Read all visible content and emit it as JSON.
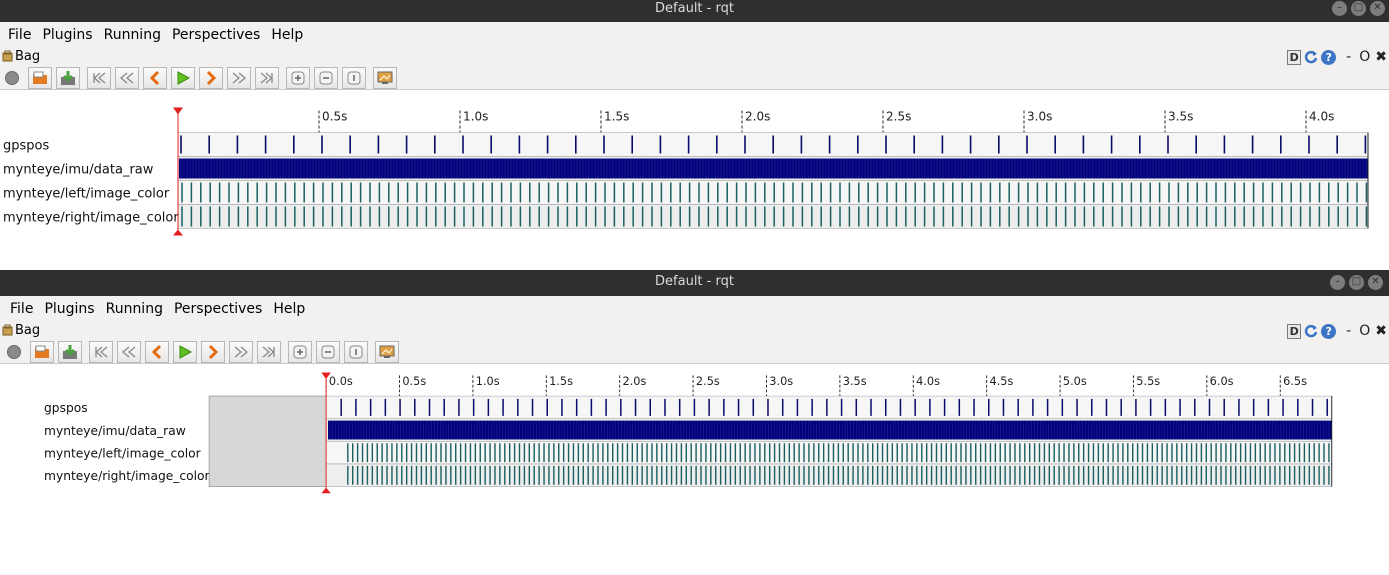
{
  "windows": [
    {
      "title": "Default - rqt",
      "menu": [
        "File",
        "Plugins",
        "Running",
        "Perspectives",
        "Help"
      ],
      "plugin_label": "Bag",
      "d_label": "D",
      "help_label": "?",
      "dash_label": "-",
      "circle_label": "O",
      "close_label": "✖",
      "ticks": [
        "0.5s",
        "1.0s",
        "1.5s",
        "2.0s",
        "2.5s",
        "3.0s",
        "3.5s",
        "4.0s"
      ],
      "topics": [
        "gpspos",
        "mynteye/imu/data_raw",
        "mynteye/left/image_color",
        "mynteye/right/image_color"
      ]
    },
    {
      "title": "Default - rqt",
      "menu": [
        "File",
        "Plugins",
        "Running",
        "Perspectives",
        "Help"
      ],
      "plugin_label": "Bag",
      "d_label": "D",
      "help_label": "?",
      "dash_label": "-",
      "circle_label": "O",
      "close_label": "✖",
      "ticks": [
        "0.0s",
        "0.5s",
        "1.0s",
        "1.5s",
        "2.0s",
        "2.5s",
        "3.0s",
        "3.5s",
        "4.0s",
        "4.5s",
        "5.0s",
        "5.5s",
        "6.0s",
        "6.5s"
      ],
      "topics": [
        "gpspos",
        "mynteye/imu/data_raw",
        "mynteye/left/image_color",
        "mynteye/right/image_color"
      ]
    }
  ],
  "colors": {
    "imu": "#00007a",
    "image": "#1a6060",
    "gps": "#0a0a6a",
    "marker": "#e02020"
  }
}
